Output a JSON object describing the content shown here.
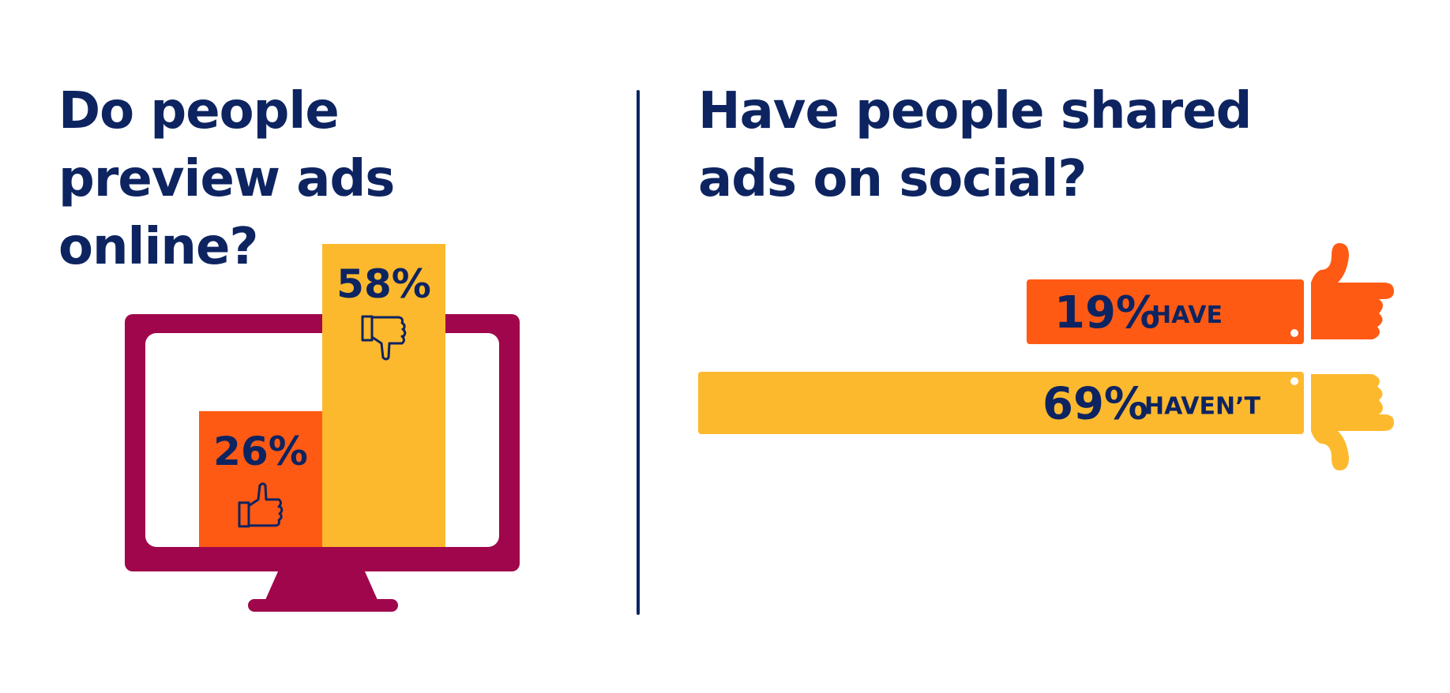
{
  "colors": {
    "navy": "#0d2461",
    "orange": "#ff5a14",
    "yellow": "#fdb92e",
    "monitor": "#a0064b"
  },
  "chart_data": [
    {
      "type": "bar",
      "title": "Do people preview ads online?",
      "categories": [
        "yes",
        "no"
      ],
      "values": [
        26,
        58
      ],
      "data_labels": [
        "26%",
        "58%"
      ],
      "icons": [
        "thumbs-up-icon",
        "thumbs-down-icon"
      ],
      "colors": [
        "#ff5a14",
        "#fdb92e"
      ]
    },
    {
      "type": "bar",
      "orientation": "horizontal",
      "title": "Have people shared ads on social?",
      "categories": [
        "HAVE",
        "HAVEN’T"
      ],
      "values": [
        19,
        69
      ],
      "data_labels": [
        "19%",
        "69%"
      ],
      "icons": [
        "thumbs-up-icon",
        "thumbs-down-icon"
      ],
      "colors": [
        "#ff5a14",
        "#fdb92e"
      ]
    }
  ]
}
